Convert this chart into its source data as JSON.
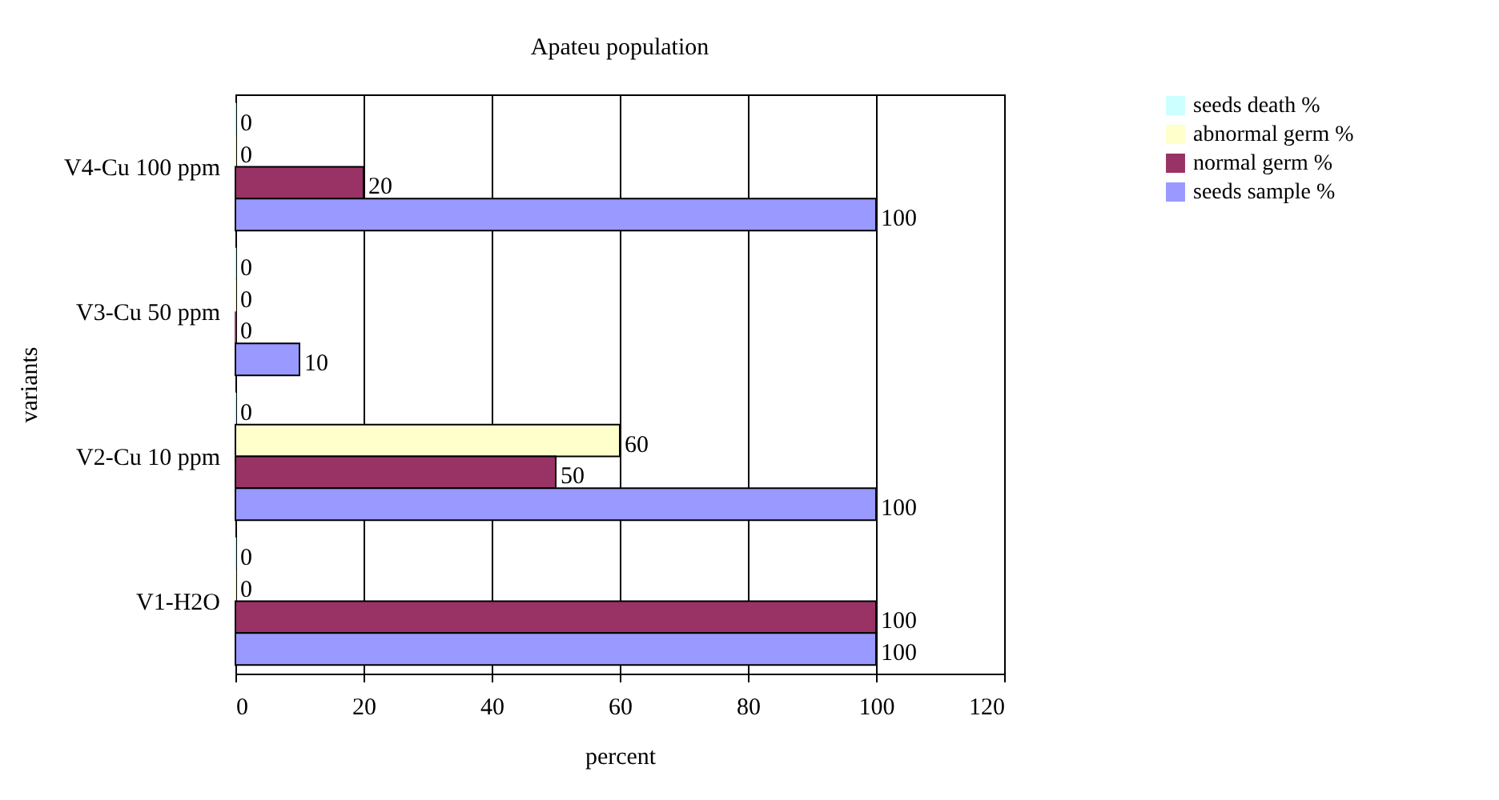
{
  "chart_data": {
    "type": "bar",
    "orientation": "horizontal",
    "title": "Apateu population",
    "xlabel": "percent",
    "ylabel": "variants",
    "categories": [
      "V4-Cu 100 ppm",
      "V3-Cu 50 ppm",
      "V2-Cu 10 ppm",
      "V1-H2O"
    ],
    "series": [
      {
        "name": "seeds death %",
        "color": "#ccffff",
        "values": [
          0,
          0,
          0,
          0
        ]
      },
      {
        "name": "abnormal germ %",
        "color": "#ffffcc",
        "values": [
          0,
          0,
          60,
          0
        ]
      },
      {
        "name": "normal germ %",
        "color": "#993366",
        "values": [
          20,
          0,
          50,
          100
        ]
      },
      {
        "name": "seeds sample %",
        "color": "#9999ff",
        "values": [
          100,
          10,
          100,
          100
        ]
      }
    ],
    "xlim": [
      0,
      120
    ],
    "xticks": [
      0,
      20,
      40,
      60,
      80,
      100,
      120
    ],
    "grid": "x",
    "legend": "right",
    "data_labels": true
  }
}
